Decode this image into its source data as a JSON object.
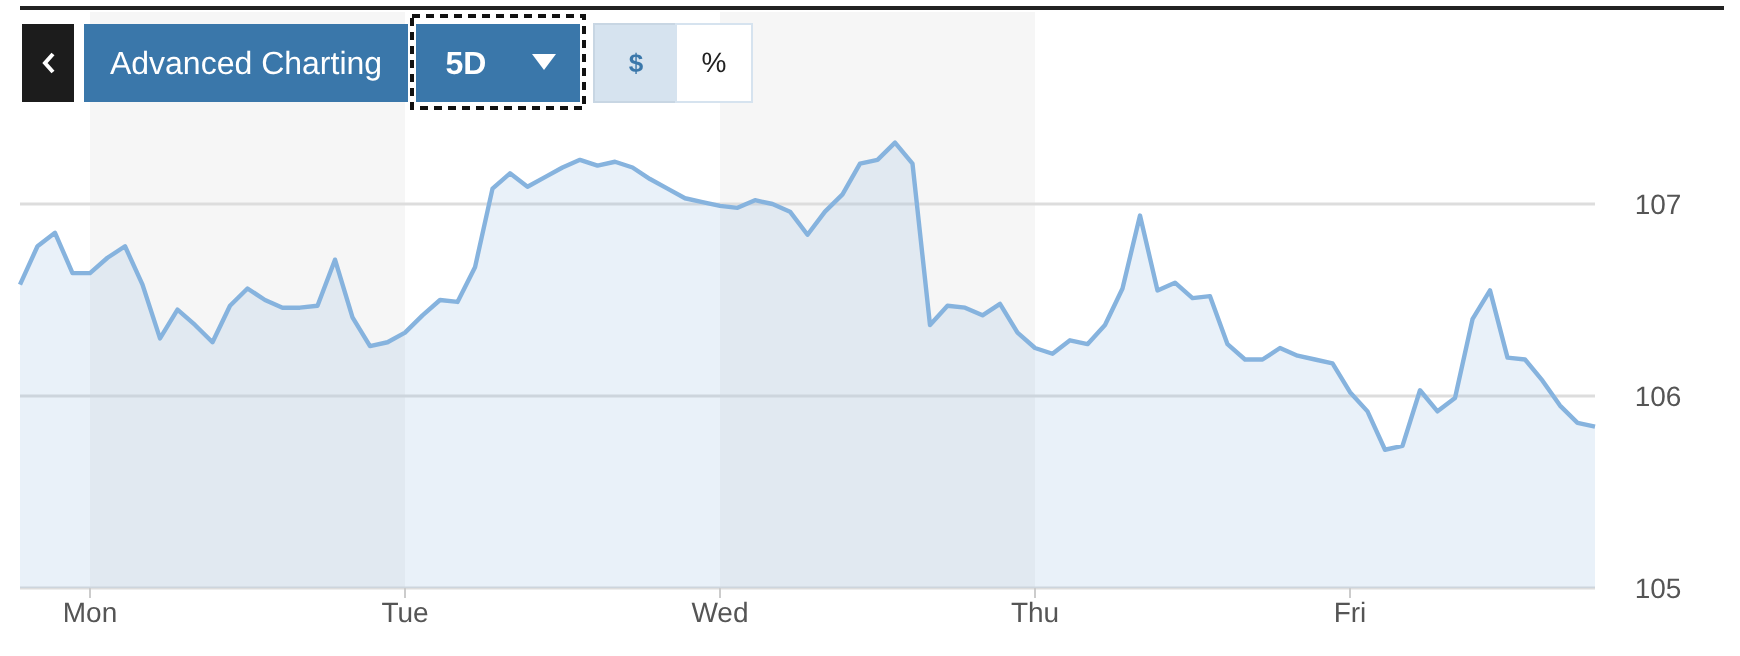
{
  "chart_data": {
    "type": "area",
    "categories": [
      null,
      null,
      null,
      null,
      "Mon",
      null,
      null,
      null,
      null,
      null,
      null,
      null,
      null,
      null,
      null,
      null,
      null,
      null,
      null,
      null,
      null,
      null,
      "Tue",
      null,
      null,
      null,
      null,
      null,
      null,
      null,
      null,
      null,
      null,
      null,
      null,
      null,
      null,
      null,
      null,
      null,
      "Wed",
      null,
      null,
      null,
      null,
      null,
      null,
      null,
      null,
      null,
      null,
      null,
      null,
      null,
      null,
      null,
      null,
      null,
      "Thu",
      null,
      null,
      null,
      null,
      null,
      null,
      null,
      null,
      null,
      null,
      null,
      null,
      null,
      null,
      null,
      null,
      null,
      "Fri",
      null,
      null,
      null,
      null,
      null,
      null,
      null,
      null,
      null,
      null,
      null,
      null,
      null,
      null
    ],
    "series": [
      {
        "color": "#86b3de",
        "values": [
          106.58,
          106.78,
          106.85,
          106.64,
          106.64,
          106.72,
          106.78,
          106.58,
          106.3,
          106.45,
          106.37,
          106.28,
          106.47,
          106.56,
          106.5,
          106.46,
          106.46,
          106.47,
          106.71,
          106.41,
          106.26,
          106.28,
          106.33,
          106.42,
          106.5,
          106.49,
          106.67,
          107.08,
          107.16,
          107.09,
          107.14,
          107.19,
          107.23,
          107.2,
          107.22,
          107.19,
          107.13,
          107.08,
          107.03,
          107.01,
          106.99,
          106.98,
          107.02,
          107,
          106.96,
          106.84,
          106.96,
          107.05,
          107.21,
          107.23,
          107.32,
          107.21,
          106.37,
          106.47,
          106.46,
          106.42,
          106.48,
          106.33,
          106.25,
          106.22,
          106.29,
          106.27,
          106.37,
          106.56,
          106.94,
          106.55,
          106.59,
          106.51,
          106.52,
          106.27,
          106.19,
          106.19,
          106.25,
          106.21,
          106.19,
          106.17,
          106.02,
          105.92,
          105.72,
          105.74,
          106.03,
          105.92,
          105.99,
          106.4,
          106.55,
          106.2,
          106.19,
          106.08,
          105.95,
          105.86,
          105.84
        ]
      }
    ],
    "ylim": [
      105,
      108
    ],
    "yticks": [
      105,
      106,
      107
    ],
    "grid": "y",
    "bands": [
      {
        "axis": "x",
        "from": "Mon",
        "to": "Tue",
        "color": "#f6f6f6"
      },
      {
        "axis": "x",
        "from": "Wed",
        "to": "Thu",
        "color": "#f6f6f6"
      }
    ],
    "annotations": [
      "Advanced Charting",
      "5D",
      "$",
      "%"
    ]
  }
}
